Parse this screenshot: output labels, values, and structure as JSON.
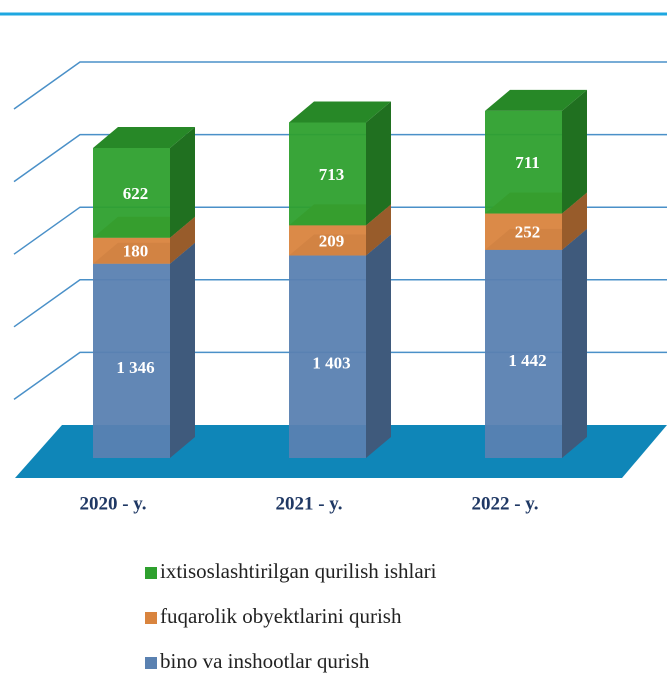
{
  "chart_data": {
    "type": "bar3d_stacked",
    "categories": [
      "2020 - y.",
      "2021 - y.",
      "2022 - y."
    ],
    "series": [
      {
        "name": "bino va inshootlar qurish",
        "color": "#5a81b1",
        "values": [
          1346,
          1403,
          1442
        ],
        "value_labels": [
          "1 346",
          "1 403",
          "1 442"
        ]
      },
      {
        "name": "fuqarolik obyektlarini qurish",
        "color": "#d9843e",
        "values": [
          180,
          209,
          252
        ]
      },
      {
        "name": "ixtisoslashtirilgan qurilish ishlari",
        "color": "#2ea02e",
        "values": [
          622,
          713,
          711
        ]
      }
    ],
    "ylim": [
      0,
      2500
    ],
    "yticks": [
      0,
      500,
      1000,
      1500,
      2000,
      2500
    ],
    "grid": true
  }
}
